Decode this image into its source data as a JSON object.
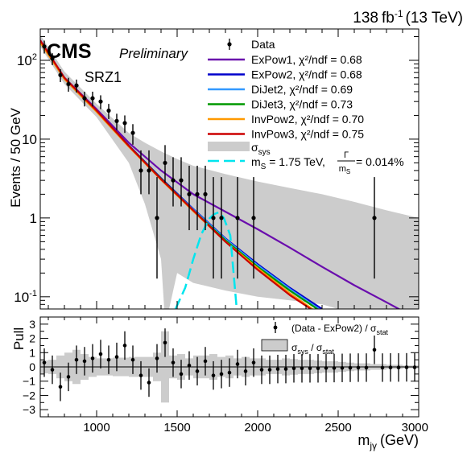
{
  "header": {
    "lumi_value": "138",
    "lumi_unit": "fb",
    "lumi_exp": "-1",
    "energy": "(13 TeV)",
    "experiment": "CMS",
    "status": "Preliminary",
    "region": "SRZ1"
  },
  "chart_data": [
    {
      "type": "line",
      "panel": "main",
      "ylabel": "Events / 50 GeV",
      "yscale": "log",
      "xlim": [
        650,
        3000
      ],
      "ylim": [
        0.07,
        250
      ],
      "y_ticks": [
        {
          "value": 0.1,
          "base": "10",
          "exp": "-1"
        },
        {
          "value": 1,
          "base": "1",
          "exp": ""
        },
        {
          "value": 10,
          "base": "10",
          "exp": ""
        },
        {
          "value": 100,
          "base": "10",
          "exp": "2"
        }
      ],
      "legend_position": "top-right",
      "legend": {
        "data": "Data",
        "sys_sub": "sys",
        "signal_prefix": "m",
        "signal_sub": "S",
        "signal_mid": " = 1.75 TeV, ",
        "signal_frac_num": "Γ",
        "signal_frac_den": "m",
        "signal_frac_den_sub": "S",
        "signal_suffix": " = 0.014%"
      },
      "fits": [
        {
          "name": "ExPow1, χ²/ndf = 0.68",
          "color": "#6a0dad",
          "points": [
            [
              650,
              180
            ],
            [
              800,
              60
            ],
            [
              1000,
              24
            ],
            [
              1200,
              9
            ],
            [
              1400,
              4
            ],
            [
              1600,
              2
            ],
            [
              1800,
              1.2
            ],
            [
              2000,
              0.72
            ],
            [
              2200,
              0.42
            ],
            [
              2400,
              0.24
            ],
            [
              2600,
              0.14
            ],
            [
              2800,
              0.085
            ],
            [
              2900,
              0.066
            ]
          ]
        },
        {
          "name": "ExPow2, χ²/ndf = 0.68",
          "color": "#0000cc",
          "points": [
            [
              650,
              175
            ],
            [
              800,
              60
            ],
            [
              1000,
              23
            ],
            [
              1200,
              8.3
            ],
            [
              1400,
              3.2
            ],
            [
              1600,
              1.3
            ],
            [
              1800,
              0.55
            ],
            [
              2000,
              0.26
            ],
            [
              2200,
              0.13
            ],
            [
              2400,
              0.07
            ]
          ]
        },
        {
          "name": "DiJet2, χ²/ndf = 0.69",
          "color": "#3399ff",
          "points": [
            [
              650,
              170
            ],
            [
              800,
              58
            ],
            [
              1000,
              22.5
            ],
            [
              1200,
              8.1
            ],
            [
              1400,
              3.1
            ],
            [
              1600,
              1.28
            ],
            [
              1800,
              0.54
            ],
            [
              2000,
              0.25
            ],
            [
              2200,
              0.125
            ],
            [
              2380,
              0.07
            ]
          ]
        },
        {
          "name": "DiJet3, χ²/ndf = 0.73",
          "color": "#009900",
          "points": [
            [
              650,
              172
            ],
            [
              800,
              59
            ],
            [
              1000,
              22.8
            ],
            [
              1200,
              8.2
            ],
            [
              1400,
              3.15
            ],
            [
              1600,
              1.25
            ],
            [
              1800,
              0.52
            ],
            [
              2000,
              0.24
            ],
            [
              2200,
              0.12
            ],
            [
              2370,
              0.07
            ]
          ]
        },
        {
          "name": "InvPow2, χ²/ndf = 0.70",
          "color": "#ff9900",
          "points": [
            [
              650,
              168
            ],
            [
              800,
              58
            ],
            [
              1000,
              22.2
            ],
            [
              1200,
              8
            ],
            [
              1400,
              3.05
            ],
            [
              1600,
              1.22
            ],
            [
              1800,
              0.5
            ],
            [
              2000,
              0.23
            ],
            [
              2200,
              0.11
            ],
            [
              2340,
              0.07
            ]
          ]
        },
        {
          "name": "InvPow3, χ²/ndf = 0.75",
          "color": "#cc0000",
          "points": [
            [
              650,
              178
            ],
            [
              800,
              60
            ],
            [
              1000,
              23
            ],
            [
              1200,
              8.2
            ],
            [
              1400,
              3.1
            ],
            [
              1600,
              1.25
            ],
            [
              1800,
              0.5
            ],
            [
              2000,
              0.22
            ],
            [
              2200,
              0.105
            ],
            [
              2330,
              0.07
            ]
          ]
        }
      ],
      "sys_band": {
        "color": "#cccccc",
        "upper": [
          [
            650,
            210
          ],
          [
            800,
            72
          ],
          [
            1000,
            28
          ],
          [
            1200,
            12
          ],
          [
            1300,
            9
          ],
          [
            1400,
            7
          ],
          [
            1500,
            5.6
          ],
          [
            1600,
            4.6
          ],
          [
            1800,
            3.6
          ],
          [
            2000,
            2.9
          ],
          [
            2200,
            2.4
          ],
          [
            2400,
            2.0
          ],
          [
            2600,
            1.6
          ],
          [
            2800,
            1.25
          ],
          [
            3000,
            1.0
          ]
        ],
        "lower": [
          [
            3000,
            0.07
          ],
          [
            2500,
            0.07
          ],
          [
            2400,
            0.08
          ],
          [
            2200,
            0.09
          ],
          [
            2000,
            0.1
          ],
          [
            1800,
            0.12
          ],
          [
            1600,
            0.15
          ],
          [
            1500,
            0.2
          ],
          [
            1450,
            0.07
          ],
          [
            1420,
            0.07
          ],
          [
            1400,
            0.3
          ],
          [
            1300,
            1.5
          ],
          [
            1200,
            5
          ],
          [
            1000,
            19
          ],
          [
            800,
            50
          ],
          [
            650,
            150
          ]
        ]
      },
      "signal": {
        "color": "#00e5ee",
        "points": [
          [
            1490,
            0.07
          ],
          [
            1550,
            0.13
          ],
          [
            1600,
            0.3
          ],
          [
            1650,
            0.62
          ],
          [
            1700,
            0.98
          ],
          [
            1730,
            1.12
          ],
          [
            1760,
            1.18
          ],
          [
            1790,
            1.0
          ],
          [
            1830,
            0.6
          ],
          [
            1870,
            0.07
          ]
        ]
      },
      "data_points": [
        {
          "x": 675,
          "y": 150,
          "err": [
            28,
            28
          ]
        },
        {
          "x": 725,
          "y": 105,
          "err": [
            18,
            18
          ]
        },
        {
          "x": 775,
          "y": 65,
          "err": [
            12,
            12
          ]
        },
        {
          "x": 825,
          "y": 50,
          "err": [
            10,
            10
          ]
        },
        {
          "x": 875,
          "y": 48,
          "err": [
            9,
            9
          ]
        },
        {
          "x": 925,
          "y": 33,
          "err": [
            7,
            7
          ]
        },
        {
          "x": 975,
          "y": 33,
          "err": [
            7,
            7
          ]
        },
        {
          "x": 1025,
          "y": 30,
          "err": [
            6,
            6
          ]
        },
        {
          "x": 1075,
          "y": 23,
          "err": [
            5,
            5
          ]
        },
        {
          "x": 1125,
          "y": 17,
          "err": [
            4,
            4
          ]
        },
        {
          "x": 1175,
          "y": 16,
          "err": [
            4,
            4
          ]
        },
        {
          "x": 1225,
          "y": 12,
          "err": [
            3.5,
            3.5
          ]
        },
        {
          "x": 1275,
          "y": 4,
          "err": [
            2,
            3.2
          ]
        },
        {
          "x": 1325,
          "y": 4,
          "err": [
            2,
            3.2
          ]
        },
        {
          "x": 1375,
          "y": 1,
          "err": [
            0.83,
            2.3
          ]
        },
        {
          "x": 1425,
          "y": 5,
          "err": [
            2.2,
            3.4
          ]
        },
        {
          "x": 1475,
          "y": 3,
          "err": [
            1.6,
            2.9
          ]
        },
        {
          "x": 1525,
          "y": 3,
          "err": [
            1.6,
            2.9
          ]
        },
        {
          "x": 1575,
          "y": 2,
          "err": [
            1.3,
            2.6
          ]
        },
        {
          "x": 1625,
          "y": 2,
          "err": [
            1.3,
            2.6
          ]
        },
        {
          "x": 1675,
          "y": 2,
          "err": [
            1.3,
            2.6
          ]
        },
        {
          "x": 1725,
          "y": 1,
          "err": [
            0.83,
            2.3
          ]
        },
        {
          "x": 1775,
          "y": 1,
          "err": [
            0.83,
            2.3
          ]
        },
        {
          "x": 1875,
          "y": 1,
          "err": [
            0.83,
            2.3
          ]
        },
        {
          "x": 1975,
          "y": 1,
          "err": [
            0.83,
            2.3
          ]
        },
        {
          "x": 2725,
          "y": 1,
          "err": [
            0.83,
            2.3
          ]
        }
      ]
    },
    {
      "type": "scatter",
      "panel": "ratio",
      "ylabel": "Pull",
      "xlabel": "m",
      "xlabel_sub": "jγ",
      "xlabel_unit": "(GeV)",
      "xlim": [
        650,
        3000
      ],
      "ylim": [
        -3.5,
        3.5
      ],
      "x_ticks": [
        1000,
        1500,
        2000,
        2500,
        3000
      ],
      "y_ticks": [
        -3,
        -2,
        -1,
        0,
        1,
        2,
        3
      ],
      "legend": {
        "data_label": "(Data - ExPow2) / σ",
        "data_label_sub": "stat",
        "band_label_a": "σ",
        "band_label_a_sub": "sys",
        "band_label_mid": " / σ",
        "band_label_b_sub": "stat"
      },
      "band": {
        "bin_width": 50,
        "color": "#cccccc",
        "half_widths": [
          0.45,
          0.5,
          0.8,
          1.0,
          1.2,
          0.9,
          0.7,
          0.6,
          0.6,
          0.65,
          0.65,
          0.7,
          0.7,
          0.7,
          1.0,
          2.5,
          0.8,
          0.9,
          0.6,
          0.8,
          0.8,
          0.9,
          0.7,
          0.8,
          0.6,
          0.7,
          0.6,
          0.6,
          0.5,
          0.5,
          0.6,
          0.55,
          0.5,
          0.5,
          0.45,
          0.4,
          0.4,
          0.35,
          0.3,
          0.25,
          0.25,
          0.2,
          0.2,
          0.15,
          0.15,
          0.1,
          0.1
        ]
      },
      "pulls": [
        {
          "x": 675,
          "y": 0.3,
          "err": 1
        },
        {
          "x": 725,
          "y": -0.2,
          "err": 1
        },
        {
          "x": 775,
          "y": -1.4,
          "err": 1
        },
        {
          "x": 825,
          "y": -0.7,
          "err": 1
        },
        {
          "x": 875,
          "y": 0.5,
          "err": 1
        },
        {
          "x": 925,
          "y": 0.4,
          "err": 1
        },
        {
          "x": 975,
          "y": 0.6,
          "err": 1
        },
        {
          "x": 1025,
          "y": 0.9,
          "err": 1
        },
        {
          "x": 1075,
          "y": 0.5,
          "err": 1
        },
        {
          "x": 1125,
          "y": 0.7,
          "err": 1
        },
        {
          "x": 1175,
          "y": 1.5,
          "err": 1
        },
        {
          "x": 1225,
          "y": 0.5,
          "err": 1
        },
        {
          "x": 1275,
          "y": -0.6,
          "err": 1
        },
        {
          "x": 1325,
          "y": -1.1,
          "err": 1
        },
        {
          "x": 1375,
          "y": 0.6,
          "err": 1
        },
        {
          "x": 1425,
          "y": 1.7,
          "err": 1
        },
        {
          "x": 1475,
          "y": 0.3,
          "err": 1
        },
        {
          "x": 1525,
          "y": -0.5,
          "err": 1
        },
        {
          "x": 1575,
          "y": 0.1,
          "err": 1
        },
        {
          "x": 1625,
          "y": -0.3,
          "err": 1
        },
        {
          "x": 1675,
          "y": 0.4,
          "err": 1
        },
        {
          "x": 1725,
          "y": -0.6,
          "err": 1
        },
        {
          "x": 1775,
          "y": -0.5,
          "err": 1
        },
        {
          "x": 1825,
          "y": -0.4,
          "err": 1
        },
        {
          "x": 1875,
          "y": 0.2,
          "err": 1
        },
        {
          "x": 1925,
          "y": -0.3,
          "err": 1
        },
        {
          "x": 1975,
          "y": 0.3,
          "err": 1
        },
        {
          "x": 2025,
          "y": -0.2,
          "err": 1
        },
        {
          "x": 2075,
          "y": -0.2,
          "err": 1
        },
        {
          "x": 2125,
          "y": -0.15,
          "err": 1
        },
        {
          "x": 2175,
          "y": -0.15,
          "err": 1
        },
        {
          "x": 2225,
          "y": -0.1,
          "err": 1
        },
        {
          "x": 2275,
          "y": -0.1,
          "err": 1
        },
        {
          "x": 2325,
          "y": -0.1,
          "err": 1
        },
        {
          "x": 2375,
          "y": -0.1,
          "err": 1
        },
        {
          "x": 2425,
          "y": -0.08,
          "err": 1
        },
        {
          "x": 2475,
          "y": -0.08,
          "err": 1
        },
        {
          "x": 2525,
          "y": -0.07,
          "err": 1
        },
        {
          "x": 2575,
          "y": -0.06,
          "err": 1
        },
        {
          "x": 2625,
          "y": -0.05,
          "err": 1
        },
        {
          "x": 2675,
          "y": -0.05,
          "err": 1
        },
        {
          "x": 2725,
          "y": 1.2,
          "err": 1
        },
        {
          "x": 2775,
          "y": -0.05,
          "err": 1
        },
        {
          "x": 2825,
          "y": -0.04,
          "err": 1
        },
        {
          "x": 2875,
          "y": -0.04,
          "err": 1
        },
        {
          "x": 2925,
          "y": -0.03,
          "err": 1
        },
        {
          "x": 2975,
          "y": -0.03,
          "err": 1
        }
      ]
    }
  ]
}
